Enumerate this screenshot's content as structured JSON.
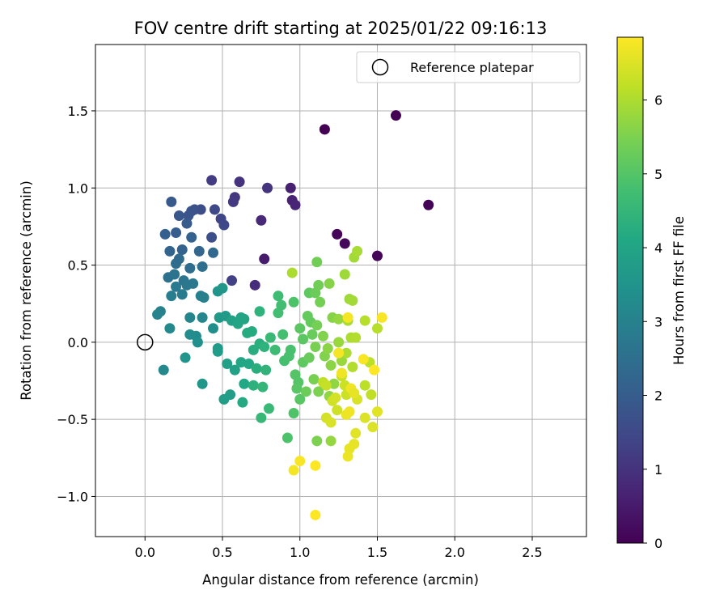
{
  "chart_data": {
    "type": "scatter",
    "title": "FOV centre drift starting at 2025/01/22 09:16:13",
    "xlabel": "Angular distance from reference (arcmin)",
    "ylabel": "Rotation from reference (arcmin)",
    "xlim": [
      -0.32,
      2.85
    ],
    "ylim": [
      -1.26,
      1.93
    ],
    "xticks": [
      0.0,
      0.5,
      1.0,
      1.5,
      2.0,
      2.5
    ],
    "xtick_labels": [
      "0.0",
      "0.5",
      "1.0",
      "1.5",
      "2.0",
      "2.5"
    ],
    "yticks": [
      -1.0,
      -0.5,
      0.0,
      0.5,
      1.0,
      1.5
    ],
    "ytick_labels": [
      "−1.0",
      "−0.5",
      "0.0",
      "0.5",
      "1.0",
      "1.5"
    ],
    "grid": true,
    "legend": {
      "position": "top-right",
      "entries": [
        "Reference platepar"
      ]
    },
    "reference_point": {
      "x": 0.0,
      "y": 0.0,
      "label": "Reference platepar"
    },
    "colorbar": {
      "label": "Hours from first FF file",
      "colormap": "viridis",
      "range": [
        0,
        6.85
      ],
      "ticks": [
        0,
        1,
        2,
        3,
        4,
        5,
        6
      ],
      "tick_labels": [
        "0",
        "1",
        "2",
        "3",
        "4",
        "5",
        "6"
      ]
    },
    "points": [
      {
        "x": 1.16,
        "y": 1.38,
        "h": 0.0
      },
      {
        "x": 1.62,
        "y": 1.47,
        "h": 0.0
      },
      {
        "x": 1.83,
        "y": 0.89,
        "h": 0.05
      },
      {
        "x": 1.24,
        "y": 0.7,
        "h": 0.1
      },
      {
        "x": 1.29,
        "y": 0.64,
        "h": 0.15
      },
      {
        "x": 1.5,
        "y": 0.56,
        "h": 0.1
      },
      {
        "x": 0.94,
        "y": 1.0,
        "h": 0.6
      },
      {
        "x": 0.95,
        "y": 0.92,
        "h": 0.65
      },
      {
        "x": 0.97,
        "y": 0.89,
        "h": 0.7
      },
      {
        "x": 0.77,
        "y": 0.54,
        "h": 0.5
      },
      {
        "x": 0.75,
        "y": 0.79,
        "h": 0.8
      },
      {
        "x": 0.71,
        "y": 0.37,
        "h": 0.9
      },
      {
        "x": 0.61,
        "y": 1.04,
        "h": 1.0
      },
      {
        "x": 0.58,
        "y": 0.94,
        "h": 1.1
      },
      {
        "x": 0.57,
        "y": 0.91,
        "h": 1.15
      },
      {
        "x": 0.79,
        "y": 1.0,
        "h": 1.0
      },
      {
        "x": 0.43,
        "y": 1.05,
        "h": 1.2
      },
      {
        "x": 0.56,
        "y": 0.4,
        "h": 1.3
      },
      {
        "x": 0.49,
        "y": 0.8,
        "h": 1.4
      },
      {
        "x": 0.51,
        "y": 0.76,
        "h": 1.45
      },
      {
        "x": 0.45,
        "y": 0.86,
        "h": 1.5
      },
      {
        "x": 0.36,
        "y": 0.86,
        "h": 1.6
      },
      {
        "x": 0.43,
        "y": 0.68,
        "h": 1.65
      },
      {
        "x": 0.32,
        "y": 0.86,
        "h": 1.7
      },
      {
        "x": 0.3,
        "y": 0.85,
        "h": 1.75
      },
      {
        "x": 0.28,
        "y": 0.82,
        "h": 1.8
      },
      {
        "x": 0.22,
        "y": 0.82,
        "h": 1.85
      },
      {
        "x": 0.17,
        "y": 0.91,
        "h": 1.9
      },
      {
        "x": 0.27,
        "y": 0.77,
        "h": 1.95
      },
      {
        "x": 0.2,
        "y": 0.71,
        "h": 2.0
      },
      {
        "x": 0.13,
        "y": 0.7,
        "h": 2.05
      },
      {
        "x": 0.3,
        "y": 0.68,
        "h": 2.1
      },
      {
        "x": 0.24,
        "y": 0.6,
        "h": 2.15
      },
      {
        "x": 0.16,
        "y": 0.59,
        "h": 2.2
      },
      {
        "x": 0.35,
        "y": 0.59,
        "h": 2.25
      },
      {
        "x": 0.44,
        "y": 0.58,
        "h": 2.3
      },
      {
        "x": 0.22,
        "y": 0.54,
        "h": 2.35
      },
      {
        "x": 0.2,
        "y": 0.51,
        "h": 2.4
      },
      {
        "x": 0.29,
        "y": 0.48,
        "h": 2.45
      },
      {
        "x": 0.37,
        "y": 0.49,
        "h": 2.5
      },
      {
        "x": 0.15,
        "y": 0.42,
        "h": 2.55
      },
      {
        "x": 0.19,
        "y": 0.44,
        "h": 2.6
      },
      {
        "x": 0.25,
        "y": 0.4,
        "h": 2.65
      },
      {
        "x": 0.27,
        "y": 0.37,
        "h": 2.7
      },
      {
        "x": 0.31,
        "y": 0.38,
        "h": 2.75
      },
      {
        "x": 0.2,
        "y": 0.36,
        "h": 2.8
      },
      {
        "x": 0.24,
        "y": 0.31,
        "h": 2.85
      },
      {
        "x": 0.17,
        "y": 0.3,
        "h": 2.9
      },
      {
        "x": 0.36,
        "y": 0.3,
        "h": 2.95
      },
      {
        "x": 0.38,
        "y": 0.29,
        "h": 3.0
      },
      {
        "x": 0.1,
        "y": 0.2,
        "h": 3.0
      },
      {
        "x": 0.08,
        "y": 0.18,
        "h": 3.05
      },
      {
        "x": 0.29,
        "y": 0.16,
        "h": 3.1
      },
      {
        "x": 0.37,
        "y": 0.16,
        "h": 3.15
      },
      {
        "x": 0.16,
        "y": 0.09,
        "h": 3.2
      },
      {
        "x": 0.33,
        "y": 0.04,
        "h": 3.25
      },
      {
        "x": 0.29,
        "y": 0.05,
        "h": 3.3
      },
      {
        "x": 0.44,
        "y": 0.09,
        "h": 3.35
      },
      {
        "x": 0.34,
        "y": 0.0,
        "h": 3.4
      },
      {
        "x": 0.12,
        "y": -0.18,
        "h": 3.2
      },
      {
        "x": 0.26,
        "y": -0.1,
        "h": 3.5
      },
      {
        "x": 0.37,
        "y": -0.27,
        "h": 3.6
      },
      {
        "x": 0.47,
        "y": 0.33,
        "h": 3.55
      },
      {
        "x": 0.5,
        "y": 0.35,
        "h": 3.6
      },
      {
        "x": 0.48,
        "y": 0.16,
        "h": 3.65
      },
      {
        "x": 0.52,
        "y": 0.17,
        "h": 3.7
      },
      {
        "x": 0.47,
        "y": -0.04,
        "h": 3.7
      },
      {
        "x": 0.47,
        "y": -0.06,
        "h": 3.75
      },
      {
        "x": 0.51,
        "y": -0.37,
        "h": 3.8
      },
      {
        "x": 0.55,
        "y": -0.34,
        "h": 3.8
      },
      {
        "x": 0.53,
        "y": -0.14,
        "h": 3.85
      },
      {
        "x": 0.58,
        "y": -0.18,
        "h": 3.9
      },
      {
        "x": 0.56,
        "y": 0.14,
        "h": 3.9
      },
      {
        "x": 0.62,
        "y": 0.16,
        "h": 3.95
      },
      {
        "x": 0.6,
        "y": 0.12,
        "h": 4.0
      },
      {
        "x": 0.64,
        "y": 0.15,
        "h": 4.0
      },
      {
        "x": 0.62,
        "y": -0.13,
        "h": 4.05
      },
      {
        "x": 0.67,
        "y": -0.14,
        "h": 4.1
      },
      {
        "x": 0.64,
        "y": -0.27,
        "h": 4.1
      },
      {
        "x": 0.63,
        "y": -0.39,
        "h": 4.15
      },
      {
        "x": 0.66,
        "y": 0.06,
        "h": 4.2
      },
      {
        "x": 0.69,
        "y": 0.07,
        "h": 4.2
      },
      {
        "x": 0.7,
        "y": -0.05,
        "h": 4.25
      },
      {
        "x": 0.74,
        "y": -0.01,
        "h": 4.3
      },
      {
        "x": 0.72,
        "y": -0.17,
        "h": 4.3
      },
      {
        "x": 0.7,
        "y": -0.28,
        "h": 4.35
      },
      {
        "x": 0.74,
        "y": 0.2,
        "h": 4.4
      },
      {
        "x": 0.77,
        "y": -0.03,
        "h": 4.4
      },
      {
        "x": 0.78,
        "y": -0.18,
        "h": 4.45
      },
      {
        "x": 0.76,
        "y": -0.29,
        "h": 4.5
      },
      {
        "x": 0.75,
        "y": -0.49,
        "h": 4.55
      },
      {
        "x": 0.8,
        "y": -0.43,
        "h": 4.6
      },
      {
        "x": 0.81,
        "y": 0.03,
        "h": 4.6
      },
      {
        "x": 0.84,
        "y": -0.05,
        "h": 4.65
      },
      {
        "x": 0.86,
        "y": 0.3,
        "h": 4.7
      },
      {
        "x": 0.86,
        "y": 0.19,
        "h": 4.75
      },
      {
        "x": 0.88,
        "y": 0.24,
        "h": 4.75
      },
      {
        "x": 0.89,
        "y": 0.05,
        "h": 4.8
      },
      {
        "x": 0.9,
        "y": -0.12,
        "h": 4.8
      },
      {
        "x": 0.93,
        "y": -0.09,
        "h": 4.85
      },
      {
        "x": 0.94,
        "y": -0.05,
        "h": 4.85
      },
      {
        "x": 0.96,
        "y": 0.26,
        "h": 4.9
      },
      {
        "x": 0.92,
        "y": -0.62,
        "h": 4.9
      },
      {
        "x": 0.96,
        "y": -0.46,
        "h": 4.95
      },
      {
        "x": 0.97,
        "y": -0.21,
        "h": 5.0
      },
      {
        "x": 0.99,
        "y": -0.26,
        "h": 5.0
      },
      {
        "x": 1.0,
        "y": -0.37,
        "h": 5.05
      },
      {
        "x": 0.98,
        "y": -0.3,
        "h": 5.05
      },
      {
        "x": 1.0,
        "y": 0.09,
        "h": 5.1
      },
      {
        "x": 1.02,
        "y": 0.02,
        "h": 5.1
      },
      {
        "x": 1.02,
        "y": -0.13,
        "h": 5.15
      },
      {
        "x": 1.06,
        "y": 0.32,
        "h": 5.15
      },
      {
        "x": 1.05,
        "y": 0.17,
        "h": 5.2
      },
      {
        "x": 1.07,
        "y": 0.13,
        "h": 5.2
      },
      {
        "x": 1.08,
        "y": 0.05,
        "h": 5.25
      },
      {
        "x": 1.06,
        "y": -0.1,
        "h": 5.25
      },
      {
        "x": 1.04,
        "y": -0.32,
        "h": 5.3
      },
      {
        "x": 1.1,
        "y": 0.32,
        "h": 5.3
      },
      {
        "x": 1.12,
        "y": 0.37,
        "h": 5.35
      },
      {
        "x": 1.11,
        "y": 0.52,
        "h": 5.35
      },
      {
        "x": 1.13,
        "y": 0.26,
        "h": 5.4
      },
      {
        "x": 1.11,
        "y": 0.11,
        "h": 5.4
      },
      {
        "x": 1.1,
        "y": -0.03,
        "h": 5.45
      },
      {
        "x": 1.09,
        "y": -0.24,
        "h": 5.45
      },
      {
        "x": 1.12,
        "y": -0.32,
        "h": 5.5
      },
      {
        "x": 1.11,
        "y": -0.64,
        "h": 5.5
      },
      {
        "x": 1.15,
        "y": 0.04,
        "h": 5.55
      },
      {
        "x": 1.16,
        "y": -0.09,
        "h": 5.55
      },
      {
        "x": 1.19,
        "y": 0.38,
        "h": 5.6
      },
      {
        "x": 1.21,
        "y": 0.16,
        "h": 5.6
      },
      {
        "x": 1.18,
        "y": -0.04,
        "h": 5.65
      },
      {
        "x": 1.2,
        "y": -0.15,
        "h": 5.65
      },
      {
        "x": 1.22,
        "y": -0.27,
        "h": 5.7
      },
      {
        "x": 1.19,
        "y": -0.35,
        "h": 5.7
      },
      {
        "x": 1.2,
        "y": -0.64,
        "h": 5.75
      },
      {
        "x": 1.25,
        "y": 0.15,
        "h": 5.75
      },
      {
        "x": 1.25,
        "y": 0.0,
        "h": 5.8
      },
      {
        "x": 1.27,
        "y": -0.12,
        "h": 5.8
      },
      {
        "x": 1.29,
        "y": 0.44,
        "h": 5.85
      },
      {
        "x": 1.32,
        "y": 0.28,
        "h": 5.85
      },
      {
        "x": 1.34,
        "y": 0.27,
        "h": 5.9
      },
      {
        "x": 1.35,
        "y": 0.55,
        "h": 5.9
      },
      {
        "x": 1.37,
        "y": 0.59,
        "h": 5.95
      },
      {
        "x": 1.31,
        "y": 0.14,
        "h": 5.95
      },
      {
        "x": 1.33,
        "y": 0.03,
        "h": 6.0
      },
      {
        "x": 1.3,
        "y": -0.07,
        "h": 6.0
      },
      {
        "x": 1.34,
        "y": -0.16,
        "h": 6.05
      },
      {
        "x": 1.36,
        "y": 0.03,
        "h": 6.05
      },
      {
        "x": 1.42,
        "y": 0.14,
        "h": 6.1
      },
      {
        "x": 1.5,
        "y": 0.09,
        "h": 6.1
      },
      {
        "x": 1.45,
        "y": -0.13,
        "h": 6.15
      },
      {
        "x": 1.42,
        "y": -0.28,
        "h": 6.15
      },
      {
        "x": 1.46,
        "y": -0.34,
        "h": 6.2
      },
      {
        "x": 0.95,
        "y": 0.45,
        "h": 6.0
      },
      {
        "x": 1.15,
        "y": -0.26,
        "h": 6.2
      },
      {
        "x": 1.17,
        "y": -0.28,
        "h": 6.25
      },
      {
        "x": 1.27,
        "y": -0.22,
        "h": 6.25
      },
      {
        "x": 1.29,
        "y": -0.28,
        "h": 6.3
      },
      {
        "x": 1.3,
        "y": -0.34,
        "h": 6.3
      },
      {
        "x": 1.21,
        "y": -0.38,
        "h": 6.35
      },
      {
        "x": 1.24,
        "y": -0.44,
        "h": 6.35
      },
      {
        "x": 1.23,
        "y": -0.36,
        "h": 6.4
      },
      {
        "x": 1.17,
        "y": -0.49,
        "h": 6.4
      },
      {
        "x": 1.2,
        "y": -0.52,
        "h": 6.45
      },
      {
        "x": 1.37,
        "y": -0.37,
        "h": 6.45
      },
      {
        "x": 1.42,
        "y": -0.49,
        "h": 6.5
      },
      {
        "x": 1.47,
        "y": -0.55,
        "h": 6.5
      },
      {
        "x": 1.5,
        "y": -0.45,
        "h": 6.55
      },
      {
        "x": 1.36,
        "y": -0.59,
        "h": 6.55
      },
      {
        "x": 1.35,
        "y": -0.66,
        "h": 6.6
      },
      {
        "x": 1.32,
        "y": -0.69,
        "h": 6.6
      },
      {
        "x": 1.31,
        "y": -0.74,
        "h": 6.65
      },
      {
        "x": 1.3,
        "y": -0.47,
        "h": 6.65
      },
      {
        "x": 1.32,
        "y": -0.45,
        "h": 6.7
      },
      {
        "x": 1.33,
        "y": -0.3,
        "h": 6.7
      },
      {
        "x": 1.25,
        "y": -0.07,
        "h": 6.75
      },
      {
        "x": 1.31,
        "y": 0.16,
        "h": 6.75
      },
      {
        "x": 1.53,
        "y": 0.16,
        "h": 6.8
      },
      {
        "x": 1.41,
        "y": -0.11,
        "h": 6.8
      },
      {
        "x": 1.48,
        "y": -0.18,
        "h": 6.85
      },
      {
        "x": 1.0,
        "y": -0.77,
        "h": 6.8
      },
      {
        "x": 1.1,
        "y": -0.8,
        "h": 6.85
      },
      {
        "x": 0.96,
        "y": -0.83,
        "h": 6.75
      },
      {
        "x": 1.1,
        "y": -1.12,
        "h": 6.85
      },
      {
        "x": 1.27,
        "y": -0.2,
        "h": 6.7
      },
      {
        "x": 1.35,
        "y": -0.33,
        "h": 6.6
      }
    ]
  }
}
